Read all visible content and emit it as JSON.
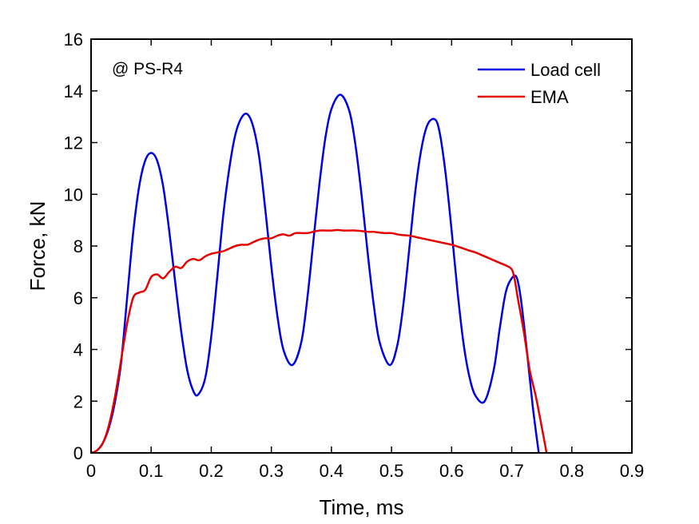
{
  "chart_data": {
    "type": "line",
    "annotation": "@ PS-R4",
    "xlabel": "Time, ms",
    "ylabel": "Force, kN",
    "xlim": [
      0,
      0.9
    ],
    "ylim": [
      0,
      16
    ],
    "xticks": [
      0,
      0.1,
      0.2,
      0.3,
      0.4,
      0.5,
      0.6,
      0.7,
      0.8,
      0.9
    ],
    "yticks": [
      0,
      2,
      4,
      6,
      8,
      10,
      12,
      14,
      16
    ],
    "grid": false,
    "legend_position": "top-right",
    "series": [
      {
        "name": "Load cell",
        "color": "#0000e6",
        "x": [
          0,
          0.01,
          0.02,
          0.03,
          0.04,
          0.05,
          0.06,
          0.07,
          0.08,
          0.09,
          0.1,
          0.11,
          0.12,
          0.13,
          0.14,
          0.15,
          0.16,
          0.17,
          0.178,
          0.19,
          0.2,
          0.21,
          0.22,
          0.23,
          0.24,
          0.25,
          0.26,
          0.27,
          0.28,
          0.29,
          0.3,
          0.31,
          0.32,
          0.335,
          0.35,
          0.36,
          0.37,
          0.38,
          0.39,
          0.4,
          0.415,
          0.43,
          0.44,
          0.45,
          0.46,
          0.47,
          0.48,
          0.497,
          0.51,
          0.52,
          0.53,
          0.54,
          0.55,
          0.56,
          0.572,
          0.58,
          0.59,
          0.6,
          0.61,
          0.62,
          0.63,
          0.64,
          0.655,
          0.67,
          0.68,
          0.69,
          0.7,
          0.708,
          0.715,
          0.725,
          0.735,
          0.745
        ],
        "y": [
          0,
          0.1,
          0.4,
          1.0,
          2.0,
          3.5,
          6.0,
          8.5,
          10.3,
          11.3,
          11.6,
          11.3,
          10.3,
          8.6,
          6.6,
          4.7,
          3.2,
          2.4,
          2.25,
          2.9,
          4.5,
          6.8,
          9.2,
          11.0,
          12.3,
          12.95,
          13.1,
          12.6,
          11.4,
          9.4,
          7.2,
          5.3,
          4.0,
          3.4,
          4.3,
          6.0,
          8.2,
          10.4,
          12.2,
          13.3,
          13.85,
          13.2,
          11.9,
          10.0,
          7.8,
          5.8,
          4.3,
          3.4,
          4.2,
          5.8,
          8.0,
          10.2,
          11.8,
          12.7,
          12.9,
          12.4,
          10.8,
          8.6,
          6.2,
          4.2,
          2.9,
          2.2,
          2.0,
          3.2,
          4.8,
          6.2,
          6.75,
          6.8,
          6.0,
          4.0,
          1.8,
          0
        ]
      },
      {
        "name": "EMA",
        "color": "#e60000",
        "x": [
          0,
          0.01,
          0.02,
          0.03,
          0.04,
          0.05,
          0.06,
          0.07,
          0.08,
          0.09,
          0.1,
          0.11,
          0.12,
          0.13,
          0.14,
          0.15,
          0.16,
          0.17,
          0.18,
          0.19,
          0.2,
          0.21,
          0.22,
          0.23,
          0.24,
          0.25,
          0.26,
          0.27,
          0.28,
          0.29,
          0.3,
          0.31,
          0.32,
          0.33,
          0.34,
          0.35,
          0.36,
          0.37,
          0.38,
          0.39,
          0.4,
          0.41,
          0.42,
          0.43,
          0.44,
          0.45,
          0.46,
          0.47,
          0.48,
          0.49,
          0.5,
          0.51,
          0.52,
          0.53,
          0.54,
          0.55,
          0.56,
          0.57,
          0.58,
          0.59,
          0.6,
          0.61,
          0.62,
          0.63,
          0.64,
          0.65,
          0.66,
          0.67,
          0.68,
          0.69,
          0.7,
          0.705,
          0.71,
          0.72,
          0.73,
          0.74,
          0.75,
          0.758
        ],
        "y": [
          0,
          0.1,
          0.4,
          1.1,
          2.2,
          3.6,
          5.0,
          6.0,
          6.2,
          6.3,
          6.8,
          6.9,
          6.75,
          7.0,
          7.2,
          7.15,
          7.4,
          7.5,
          7.45,
          7.6,
          7.7,
          7.75,
          7.8,
          7.9,
          8.0,
          8.05,
          8.05,
          8.15,
          8.25,
          8.3,
          8.3,
          8.4,
          8.45,
          8.4,
          8.5,
          8.5,
          8.5,
          8.55,
          8.6,
          8.6,
          8.6,
          8.62,
          8.6,
          8.6,
          8.6,
          8.58,
          8.55,
          8.55,
          8.52,
          8.5,
          8.5,
          8.45,
          8.42,
          8.4,
          8.35,
          8.3,
          8.25,
          8.2,
          8.15,
          8.1,
          8.05,
          7.98,
          7.9,
          7.82,
          7.75,
          7.65,
          7.55,
          7.45,
          7.35,
          7.25,
          7.1,
          6.7,
          6.0,
          4.7,
          3.2,
          2.2,
          1.0,
          0
        ]
      }
    ]
  }
}
